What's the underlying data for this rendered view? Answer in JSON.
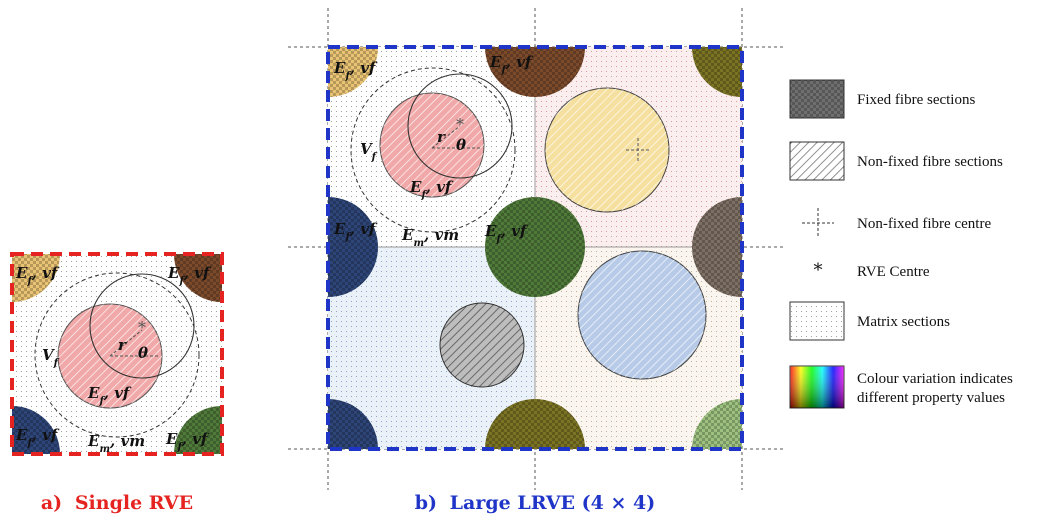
{
  "colors": {
    "single_border": "#e52421",
    "large_border": "#1f35c8",
    "gold": "#e8c373",
    "brown": "#7b4a2b",
    "navy": "#2e4578",
    "green": "#4f7a3a",
    "olive": "#7a7324",
    "pink": "#f1a8a8",
    "yellow": "#f5e0a0",
    "taupe": "#7d6f63",
    "lightblue": "#b7cbe8",
    "lightgreen": "#9cc07f"
  },
  "single_rve": {
    "caption_prefix": "a)",
    "caption_text": "Single RVE",
    "labels": {
      "tl": "E_f, v_f",
      "tr": "E_f, v_f",
      "center": "E_f, v_f",
      "bl": "E_f, v_f",
      "br": "E_f, v_f",
      "matrix": "E_m, v_m",
      "volume": "V_f",
      "radius": "r",
      "angle": "θ"
    }
  },
  "large_lrve": {
    "caption_prefix": "b)",
    "caption_text": "Large LRVE (4 × 4)",
    "labels": {
      "tl": "E_f, v_f",
      "top": "E_f, v_f",
      "left": "E_f, v_f",
      "mid": "E_f, v_f",
      "center": "E_f, v_f",
      "matrix": "E_m, v_m",
      "volume": "V_f",
      "radius": "r",
      "angle": "θ"
    }
  },
  "legend": {
    "items": [
      {
        "icon": "fixed-fibre-swatch",
        "label": "Fixed fibre sections"
      },
      {
        "icon": "non-fixed-fibre-swatch",
        "label": "Non-fixed fibre sections"
      },
      {
        "icon": "crosshair-icon",
        "label": "Non-fixed fibre centre"
      },
      {
        "icon": "asterisk-icon",
        "label": "RVE Centre"
      },
      {
        "icon": "matrix-swatch",
        "label": "Matrix sections"
      },
      {
        "icon": "rainbow-swatch",
        "label_line1": "Colour variation indicates",
        "label_line2": "different property values"
      }
    ]
  }
}
